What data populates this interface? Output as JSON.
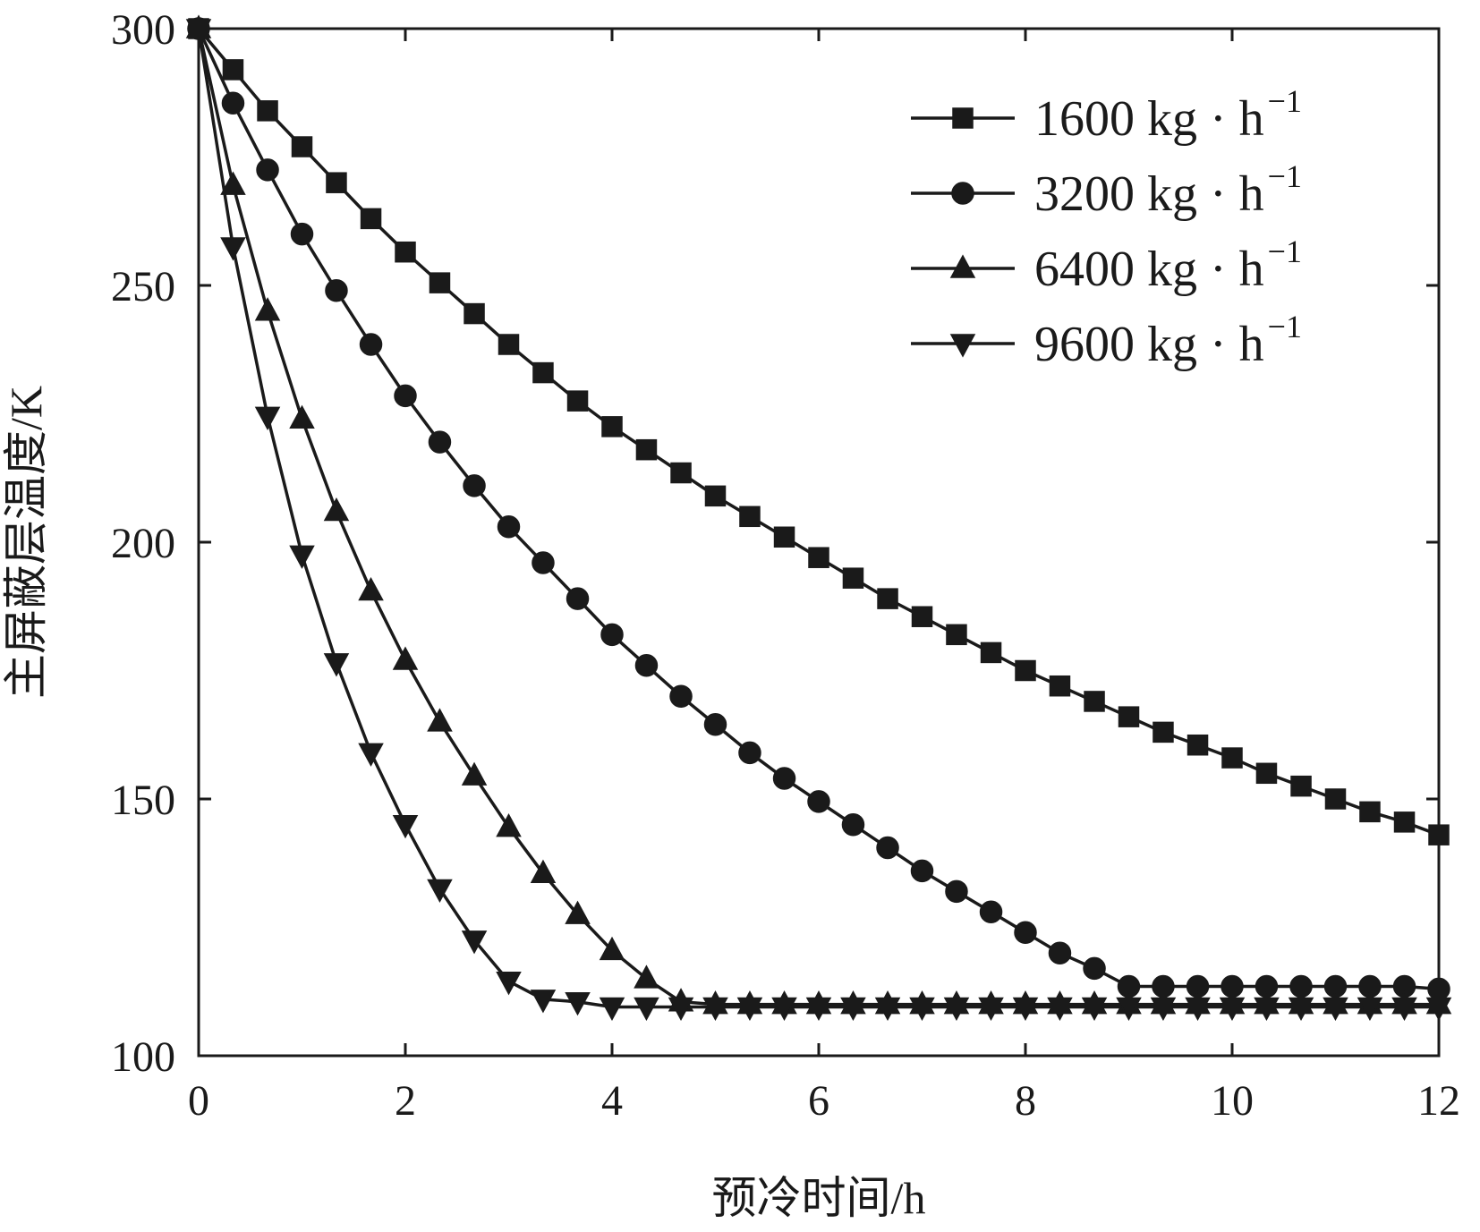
{
  "chart_data": {
    "type": "line",
    "title": "",
    "xlabel": "预冷时间/h",
    "ylabel": "主屏蔽层温度/K",
    "xlim": [
      0,
      12
    ],
    "ylim": [
      100,
      300
    ],
    "xticks": [
      0,
      2,
      4,
      6,
      8,
      10,
      12
    ],
    "yticks": [
      100,
      150,
      200,
      250,
      300
    ],
    "grid": false,
    "legend_position": "top-right",
    "x": [
      0,
      0.333,
      0.667,
      1,
      1.333,
      1.667,
      2,
      2.333,
      2.667,
      3,
      3.333,
      3.667,
      4,
      4.333,
      4.667,
      5,
      5.333,
      5.667,
      6,
      6.333,
      6.667,
      7,
      7.333,
      7.667,
      8,
      8.333,
      8.667,
      9,
      9.333,
      9.667,
      10,
      10.333,
      10.667,
      11,
      11.333,
      11.667,
      12
    ],
    "series": [
      {
        "name": "1600 kg·h−1",
        "legend_text": "1600 kg · h",
        "legend_sup": "−1",
        "marker": "square",
        "values": [
          300,
          292,
          284,
          277,
          270,
          263,
          256.5,
          250.5,
          244.5,
          238.5,
          233,
          227.5,
          222.5,
          218,
          213.5,
          209,
          205,
          201,
          197,
          193,
          189,
          185.5,
          182,
          178.5,
          175,
          172,
          169,
          166,
          163,
          160.5,
          158,
          155,
          152.5,
          150,
          147.5,
          145.5,
          143
        ]
      },
      {
        "name": "3200 kg·h−1",
        "legend_text": "3200 kg · h",
        "legend_sup": "−1",
        "marker": "circle",
        "values": [
          300,
          285.5,
          272.5,
          260,
          249,
          238.5,
          228.5,
          219.5,
          211,
          203,
          196,
          189,
          182,
          176,
          170,
          164.5,
          159,
          154,
          149.5,
          145,
          140.5,
          136,
          132,
          128,
          124,
          120,
          117,
          113.5,
          113.5,
          113.5,
          113.5,
          113.5,
          113.5,
          113.5,
          113.5,
          113.5,
          113
        ]
      },
      {
        "name": "6400 kg·h−1",
        "legend_text": "6400 kg · h",
        "legend_sup": "−1",
        "marker": "triangle-up",
        "values": [
          300,
          269.5,
          245,
          224,
          206,
          190.5,
          177,
          165,
          154.5,
          144.5,
          135.5,
          127.5,
          120.5,
          115,
          110.5,
          110,
          110,
          110,
          110,
          110,
          110,
          110,
          110,
          110,
          110,
          110,
          110,
          110,
          110,
          110,
          110,
          110,
          110,
          110,
          110,
          110,
          110
        ]
      },
      {
        "name": "9600 kg·h−1",
        "legend_text": "9600 kg · h",
        "legend_sup": "−1",
        "marker": "triangle-down",
        "values": [
          300,
          257.5,
          224.5,
          197.5,
          176.5,
          159,
          145,
          132.5,
          122.5,
          114.5,
          111,
          110.5,
          109.5,
          109.5,
          109.5,
          109.5,
          109.5,
          109.5,
          109.5,
          109.5,
          109.5,
          109.5,
          109.5,
          109.5,
          109.5,
          109.5,
          109.5,
          109.5,
          109.5,
          109.5,
          109.5,
          109.5,
          109.5,
          109.5,
          109.5,
          109.5,
          109.5
        ]
      }
    ]
  }
}
